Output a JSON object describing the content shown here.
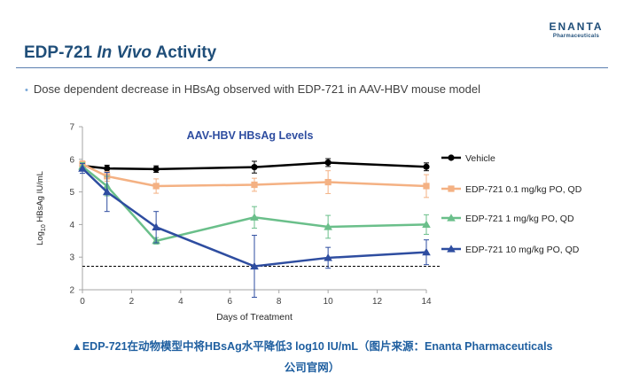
{
  "header": {
    "title_main": "EDP-721 ",
    "title_italic": "In Vivo",
    "title_end": " Activity",
    "logo_main": "ENANTA",
    "logo_sub": "Pharmaceuticals"
  },
  "bullet": {
    "symbol": "•",
    "text": "Dose dependent decrease in HBsAg observed with EDP-721 in AAV-HBV mouse model"
  },
  "caption": {
    "line1": "▲EDP-721在动物模型中将HBsAg水平降低3 log10 IU/mL（图片来源：Enanta Pharmaceuticals",
    "line2": "公司官网）"
  },
  "chart_data": {
    "type": "line",
    "title": "AAV-HBV HBsAg Levels",
    "xlabel": "Days of Treatment",
    "ylabel_pre": "Log",
    "ylabel_sub": "10",
    "ylabel_post": " HBsAg IU/mL",
    "xlim": [
      0,
      14
    ],
    "ylim": [
      2,
      7
    ],
    "xticks": [
      0,
      2,
      4,
      6,
      8,
      10,
      12,
      14
    ],
    "yticks": [
      2,
      3,
      4,
      5,
      6,
      7
    ],
    "grid": false,
    "legend_position": "right",
    "reference_line": {
      "y": 2.72,
      "style": "dashed"
    },
    "series": [
      {
        "name": "Vehicle",
        "color": "#000000",
        "marker": "circle",
        "x": [
          0,
          1,
          3,
          7,
          10,
          14
        ],
        "y": [
          5.8,
          5.72,
          5.7,
          5.76,
          5.9,
          5.77
        ],
        "err": [
          0.1,
          0.1,
          0.1,
          0.18,
          0.12,
          0.12
        ]
      },
      {
        "name": "EDP-721 0.1 mg/kg PO, QD",
        "color": "#f4b183",
        "marker": "square",
        "x": [
          0,
          1,
          3,
          7,
          10,
          14
        ],
        "y": [
          5.85,
          5.48,
          5.18,
          5.22,
          5.3,
          5.18
        ],
        "err": [
          0.1,
          0.15,
          0.22,
          0.2,
          0.35,
          0.35
        ]
      },
      {
        "name": "EDP-721 1 mg/kg PO, QD",
        "color": "#6abf8a",
        "marker": "triangle",
        "x": [
          0,
          1,
          3,
          7,
          10,
          14
        ],
        "y": [
          5.78,
          5.18,
          3.5,
          4.22,
          3.93,
          4.0
        ],
        "err": [
          0.12,
          0.3,
          0.1,
          0.33,
          0.35,
          0.3
        ]
      },
      {
        "name": "EDP-721 10 mg/kg PO, QD",
        "color": "#2e4da0",
        "marker": "triangle",
        "x": [
          0,
          1,
          3,
          7,
          10,
          14
        ],
        "y": [
          5.72,
          5.0,
          3.92,
          2.72,
          2.98,
          3.15
        ],
        "err": [
          0.15,
          0.6,
          0.48,
          0.95,
          0.32,
          0.38
        ]
      }
    ]
  }
}
